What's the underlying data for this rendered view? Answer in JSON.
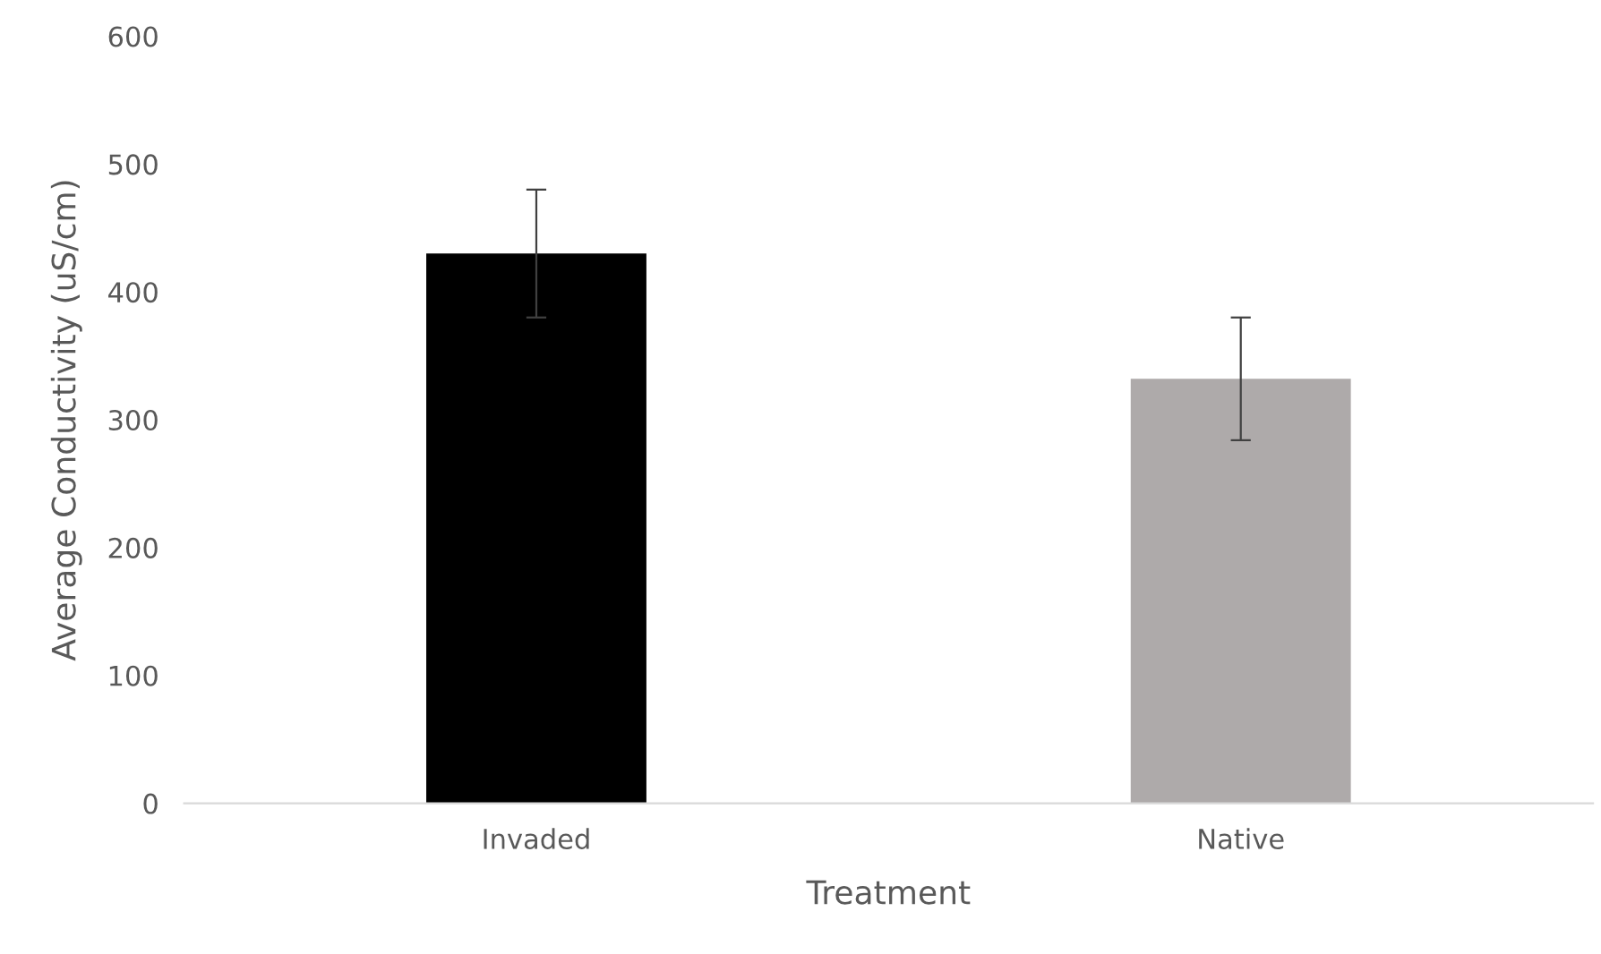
{
  "chart_data": {
    "type": "bar",
    "xlabel": "Treatment",
    "ylabel": "Average Conductivity (uS/cm)",
    "categories": [
      "Invaded",
      "Native"
    ],
    "values": [
      430,
      332
    ],
    "colors": [
      "#000000",
      "#aeaaaa"
    ],
    "errors": [
      50,
      48
    ],
    "ylim": [
      0,
      600
    ],
    "yticks": [
      0,
      100,
      200,
      300,
      400,
      500,
      600
    ],
    "grid": false,
    "legend": false
  }
}
